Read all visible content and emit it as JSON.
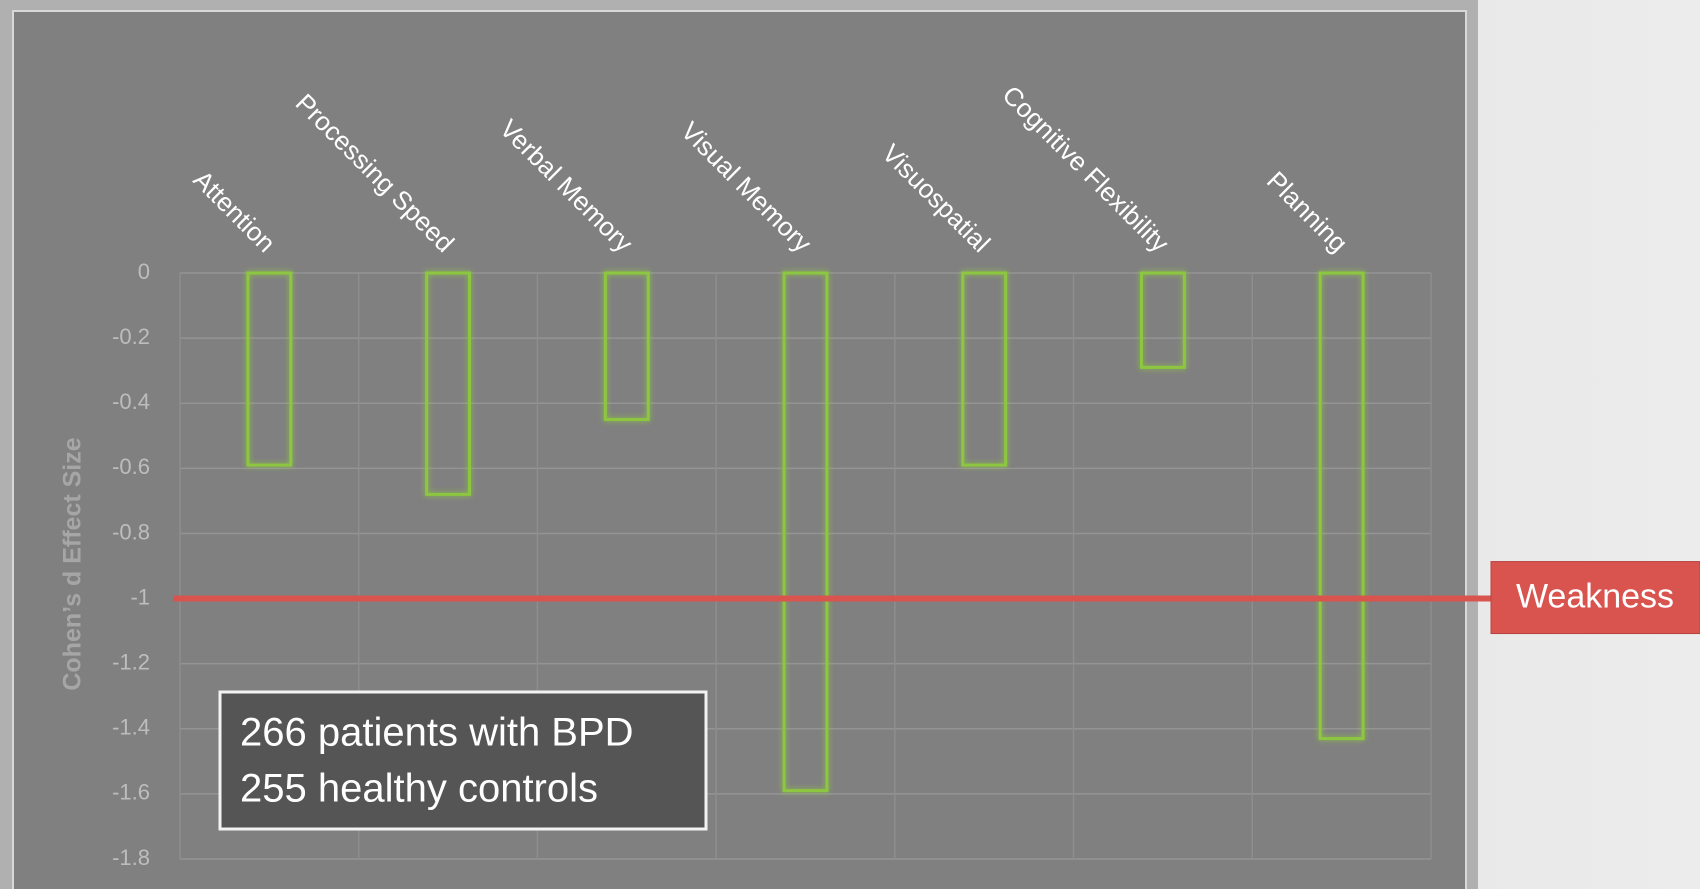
{
  "chart_data": {
    "type": "bar",
    "categories": [
      "Attention",
      "Processing Speed",
      "Verbal Memory",
      "Visual Memory",
      "Visuospatial",
      "Cognitive Flexibility",
      "Planning"
    ],
    "values": [
      -0.59,
      -0.68,
      -0.45,
      -1.59,
      -0.59,
      -0.29,
      -1.43
    ],
    "color": "#8dc63f",
    "ylabel": "Cohen’s d Effect Size",
    "ylim": [
      -1.8,
      0
    ],
    "yticks": [
      0,
      -0.2,
      -0.4,
      -0.6,
      -0.8,
      -1,
      -1.2,
      -1.4,
      -1.6,
      -1.8
    ],
    "grid": true,
    "reference_line": {
      "value": -1,
      "label": "Weakness",
      "color": "#d9534f"
    },
    "annotation": [
      "266 patients with BPD",
      "255 healthy controls"
    ]
  }
}
